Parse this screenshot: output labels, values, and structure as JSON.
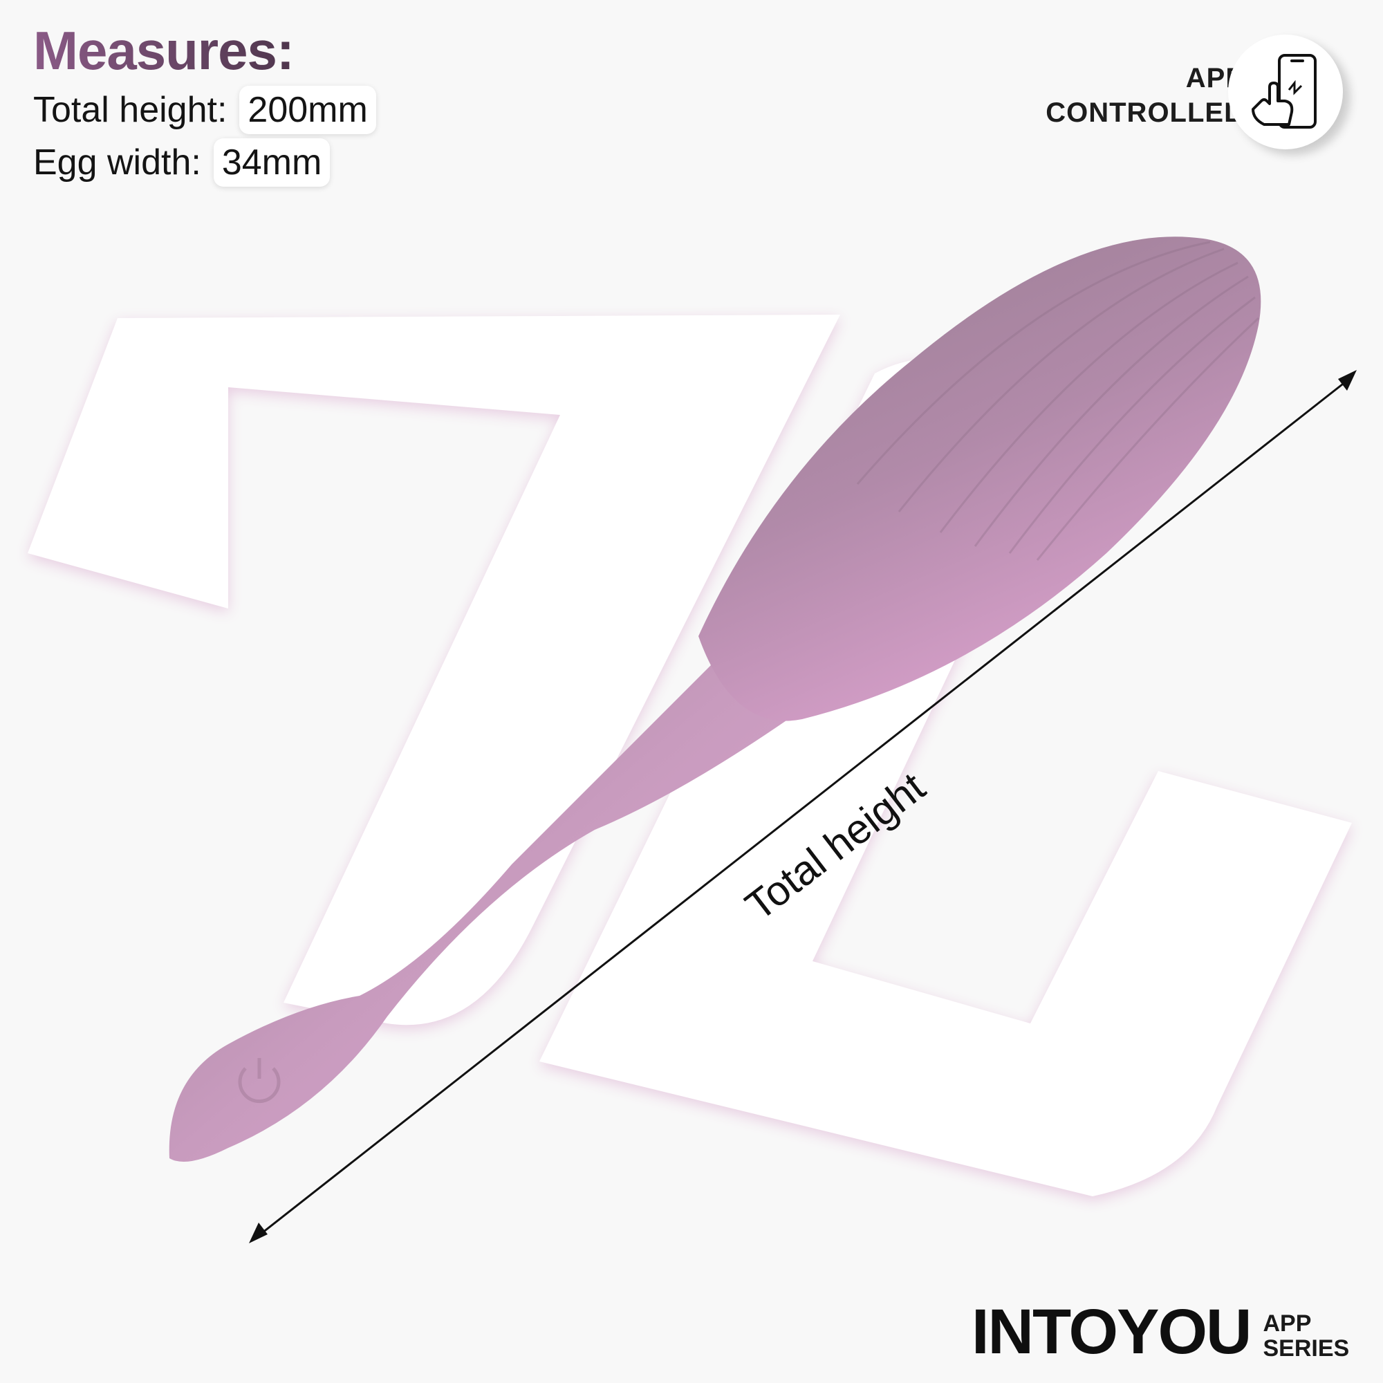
{
  "measures": {
    "title": "Measures:",
    "total_height_label": "Total height:",
    "total_height_value": "200mm",
    "egg_width_label": "Egg width:",
    "egg_width_value": "34mm"
  },
  "badge": {
    "line1": "APP",
    "line2": "CONTROLLED",
    "icon": "phone-touch-icon"
  },
  "dimension_label": "Total height",
  "brand": {
    "name": "INTOYOU",
    "series_line1": "APP",
    "series_line2": "SERIES"
  },
  "colors": {
    "product": "#d9a2cc",
    "product_shadow": "#a9859f",
    "title_gradient_start": "#8a5a86",
    "title_gradient_end": "#3b2a3a",
    "background": "#f8f8f8"
  }
}
